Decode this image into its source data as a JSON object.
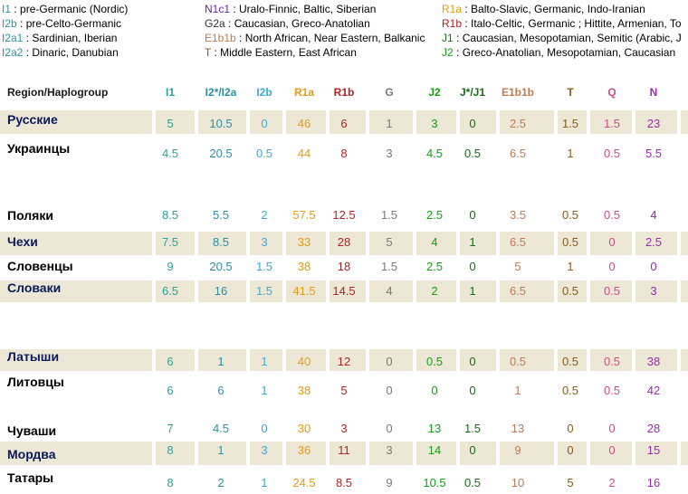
{
  "legend": {
    "col1": [
      {
        "code": "I1",
        "text": " : pre-Germanic (Nordic)"
      },
      {
        "code": "I2b",
        "text": " : pre-Celto-Germanic"
      },
      {
        "code": "I2a1",
        "text": " : Sardinian, Iberian"
      },
      {
        "code": "I2a2",
        "text": " : Dinaric, Danubian"
      }
    ],
    "col2": [
      {
        "code": "N1c1",
        "text": " : Uralo-Finnic, Baltic, Siberian"
      },
      {
        "code": "G2a",
        "text": " : Caucasian, Greco-Anatolian"
      },
      {
        "code": "E1b1b",
        "text": " : North African, Near Eastern, Balkanic"
      },
      {
        "code": "T",
        "text": " : Middle Eastern, East African"
      }
    ],
    "col3": [
      {
        "code": "R1a",
        "text": " : Balto-Slavic, Germanic, Indo-Iranian"
      },
      {
        "code": "R1b",
        "text": " : Italo-Celtic, Germanic ; Hittite, Armenian, To"
      },
      {
        "code": "J1",
        "text": " : Caucasian, Mesopotamian, Semitic (Arabic, J"
      },
      {
        "code": "J2",
        "text": " : Greco-Anatolian, Mesopotamian, Caucasian"
      }
    ]
  },
  "colors": {
    "I1": "#2aa198",
    "I2": "#2a8fa6",
    "I2b": "#41a6d6",
    "R1a": "#e89a12",
    "R1b": "#b22222",
    "G": "#7a7a7a",
    "J2": "#12a012",
    "J1": "#1a6a1a",
    "E1b1b": "#c07a52",
    "T": "#8a5a1a",
    "Q": "#d04a8a",
    "N": "#9a2ab2",
    "N1c1": "#6a2a9a",
    "G2a": "#333333",
    "legendI": "#2a8fa6",
    "region_header": "#1a1a1a",
    "row_band": "#ede8d6"
  },
  "chart_data": {
    "type": "table",
    "header_label": "Region/Haplogroup",
    "columns": [
      "I1",
      "I2*/I2a",
      "I2b",
      "R1a",
      "R1b",
      "G",
      "J2",
      "J*/J1",
      "E1b1b",
      "T",
      "Q",
      "N"
    ],
    "rows": [
      {
        "name": "Русские",
        "values": [
          "5",
          "10.5",
          "0",
          "46",
          "6",
          "1",
          "3",
          "0",
          "2.5",
          "1.5",
          "1.5",
          "23"
        ]
      },
      {
        "name": "Украинцы",
        "values": [
          "4.5",
          "20.5",
          "0.5",
          "44",
          "8",
          "3",
          "4.5",
          "0.5",
          "6.5",
          "1",
          "0.5",
          "5.5"
        ]
      },
      {
        "name": "Поляки",
        "values": [
          "8.5",
          "5.5",
          "2",
          "57.5",
          "12.5",
          "1.5",
          "2.5",
          "0",
          "3.5",
          "0.5",
          "0.5",
          "4"
        ]
      },
      {
        "name": "Чехи",
        "values": [
          "7.5",
          "8.5",
          "3",
          "33",
          "28",
          "5",
          "4",
          "1",
          "6.5",
          "0.5",
          "0",
          "2.5"
        ]
      },
      {
        "name": "Словенцы",
        "values": [
          "9",
          "20.5",
          "1.5",
          "38",
          "18",
          "1.5",
          "2.5",
          "0",
          "5",
          "1",
          "0",
          "0"
        ]
      },
      {
        "name": "Словаки",
        "values": [
          "6.5",
          "16",
          "1.5",
          "41.5",
          "14.5",
          "4",
          "2",
          "1",
          "6.5",
          "0.5",
          "0.5",
          "3"
        ]
      },
      {
        "name": "Латыши",
        "values": [
          "6",
          "1",
          "1",
          "40",
          "12",
          "0",
          "0.5",
          "0",
          "0.5",
          "0.5",
          "0.5",
          "38"
        ]
      },
      {
        "name": "Литовцы",
        "values": [
          "6",
          "6",
          "1",
          "38",
          "5",
          "0",
          "0",
          "0",
          "1",
          "0.5",
          "0.5",
          "42"
        ]
      },
      {
        "name": "Чуваши",
        "values": [
          "7",
          "4.5",
          "0",
          "30",
          "3",
          "0",
          "13",
          "1.5",
          "13",
          "0",
          "0",
          "28"
        ]
      },
      {
        "name": "Мордва",
        "values": [
          "8",
          "1",
          "3",
          "36",
          "11",
          "3",
          "14",
          "0",
          "9",
          "0",
          "0",
          "15"
        ]
      },
      {
        "name": "Татары",
        "values": [
          "8",
          "2",
          "1",
          "24.5",
          "8.5",
          "9",
          "10.5",
          "0.5",
          "10",
          "5",
          "2",
          "16"
        ]
      }
    ]
  }
}
